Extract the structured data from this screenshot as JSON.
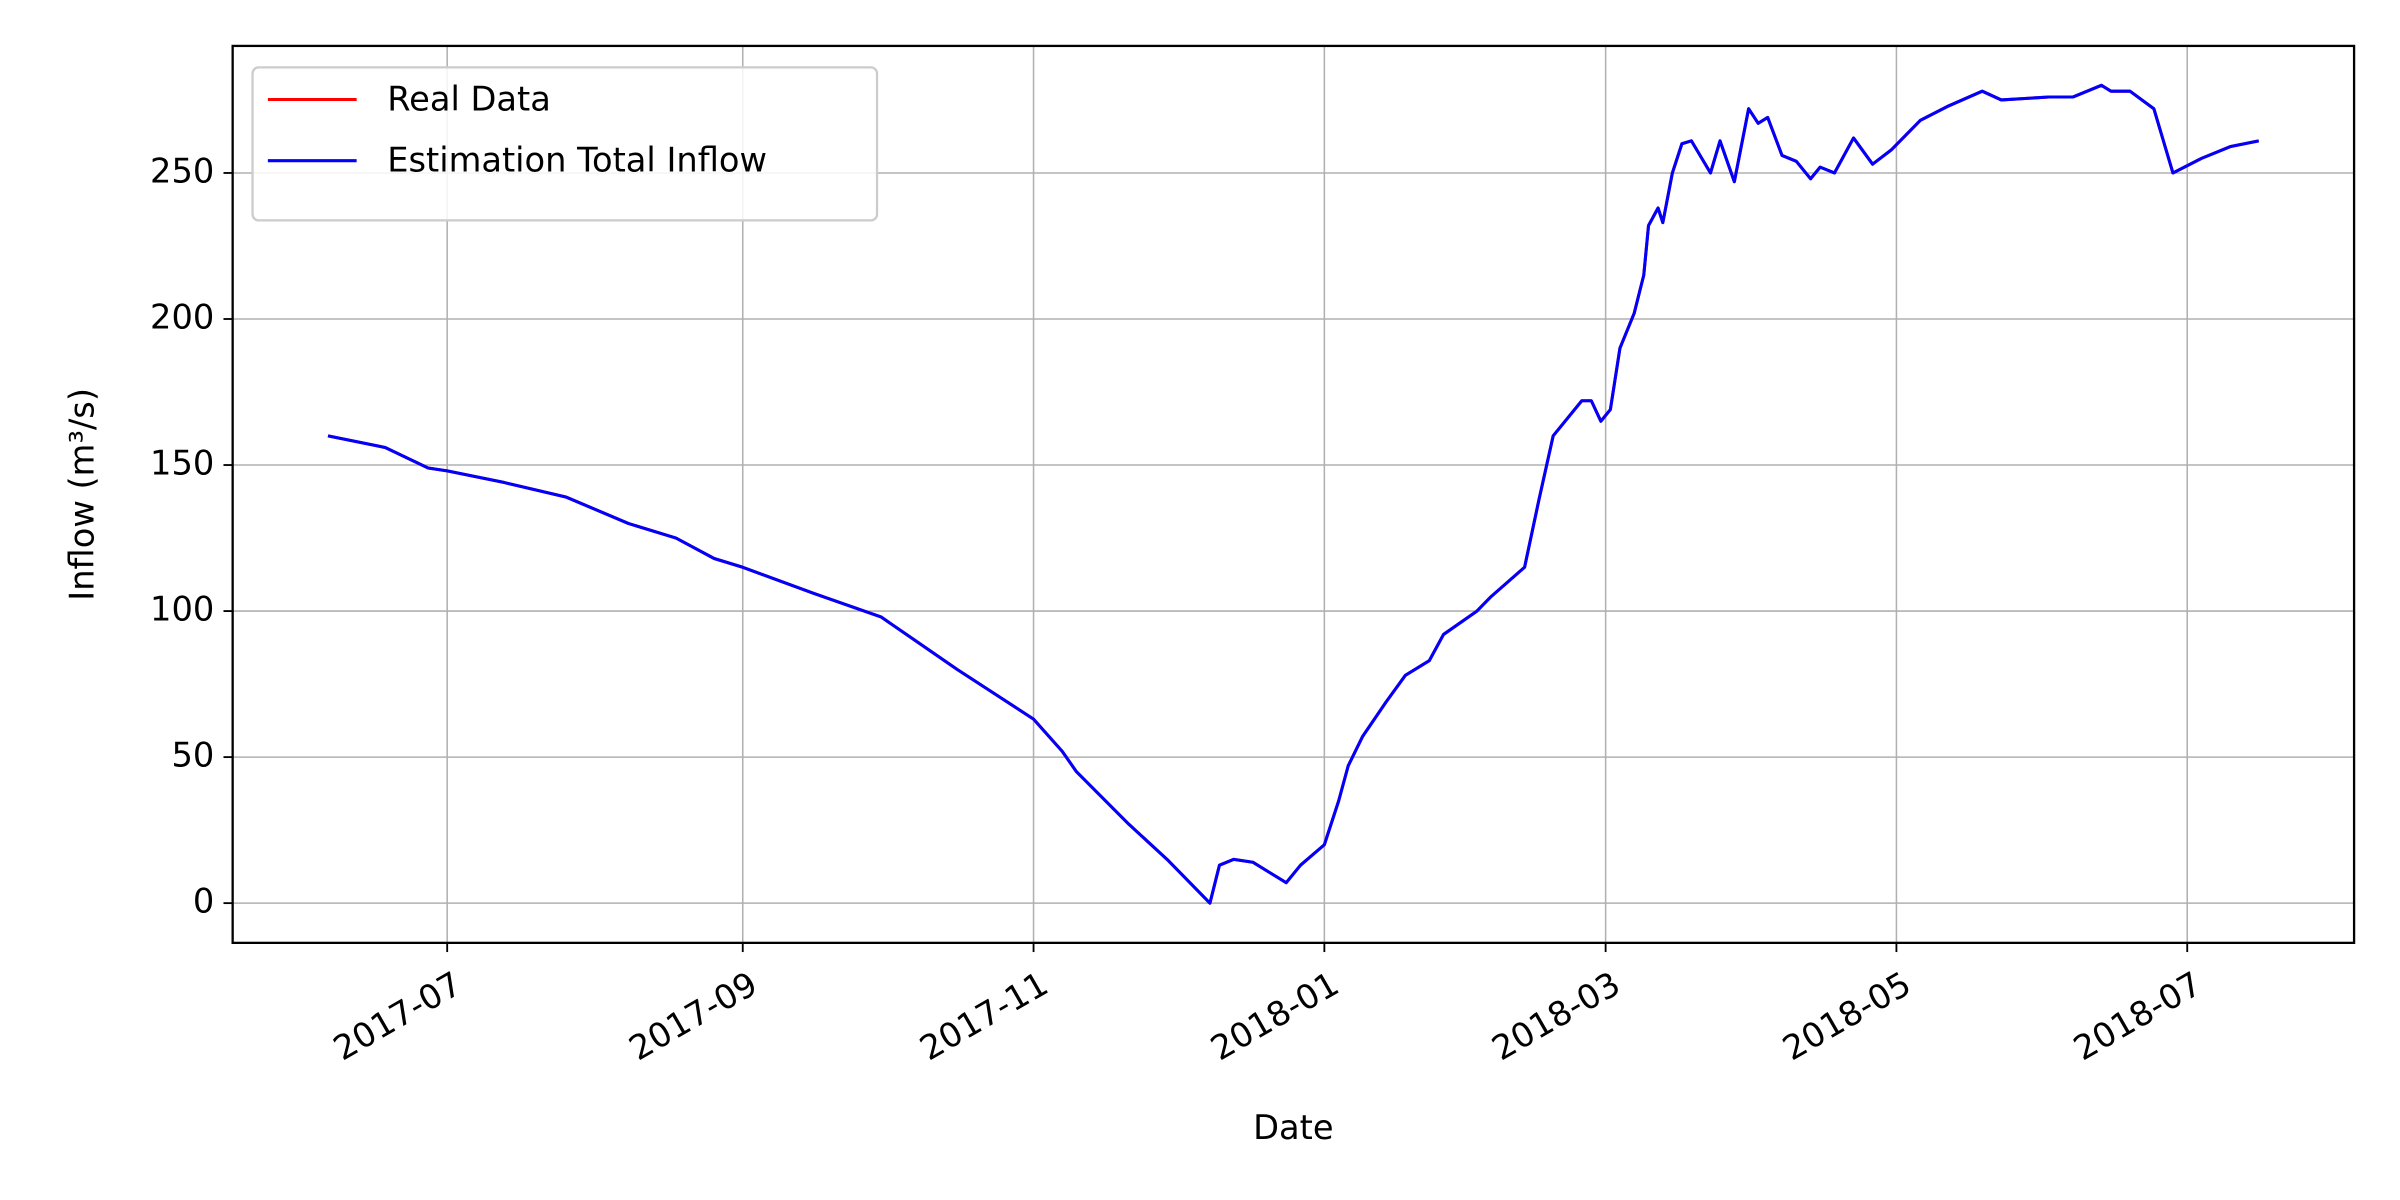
{
  "chart_data": {
    "type": "line",
    "x_label": "Date",
    "y_label": "Inflow (m³/s)",
    "x": [
      "2017-06-06",
      "2017-06-18",
      "2017-06-27",
      "2017-07-01",
      "2017-07-13",
      "2017-07-26",
      "2017-08-08",
      "2017-08-18",
      "2017-08-26",
      "2017-09-01",
      "2017-09-16",
      "2017-09-30",
      "2017-10-16",
      "2017-11-01",
      "2017-11-07",
      "2017-11-10",
      "2017-11-21",
      "2017-11-29",
      "2017-12-08",
      "2017-12-10",
      "2017-12-13",
      "2017-12-17",
      "2017-12-24",
      "2017-12-27",
      "2018-01-01",
      "2018-01-04",
      "2018-01-06",
      "2018-01-09",
      "2018-01-14",
      "2018-01-18",
      "2018-01-23",
      "2018-01-26",
      "2018-02-02",
      "2018-02-05",
      "2018-02-12",
      "2018-02-15",
      "2018-02-18",
      "2018-02-24",
      "2018-02-26",
      "2018-02-28",
      "2018-03-02",
      "2018-03-04",
      "2018-03-07",
      "2018-03-09",
      "2018-03-10",
      "2018-03-12",
      "2018-03-13",
      "2018-03-15",
      "2018-03-17",
      "2018-03-19",
      "2018-03-23",
      "2018-03-25",
      "2018-03-28",
      "2018-03-31",
      "2018-04-02",
      "2018-04-04",
      "2018-04-07",
      "2018-04-10",
      "2018-04-13",
      "2018-04-15",
      "2018-04-18",
      "2018-04-22",
      "2018-04-26",
      "2018-04-30",
      "2018-05-06",
      "2018-05-12",
      "2018-05-19",
      "2018-05-23",
      "2018-06-02",
      "2018-06-07",
      "2018-06-13",
      "2018-06-15",
      "2018-06-19",
      "2018-06-24",
      "2018-06-28",
      "2018-07-04",
      "2018-07-10",
      "2018-07-16"
    ],
    "series": [
      {
        "name": "Real Data",
        "color": "#ff0000",
        "values": [
          160,
          156,
          149,
          148,
          144,
          139,
          130,
          125,
          118,
          115,
          106,
          98,
          80,
          63,
          52,
          45,
          27,
          15,
          0,
          13,
          15,
          14,
          7,
          13,
          20,
          35,
          47,
          57,
          69,
          78,
          83,
          92,
          100,
          105,
          115,
          138,
          160,
          172,
          172,
          165,
          169,
          190,
          202,
          215,
          232,
          238,
          233,
          250,
          260,
          261,
          250,
          261,
          247,
          272,
          267,
          269,
          256,
          254,
          248,
          252,
          250,
          262,
          253,
          258,
          268,
          273,
          278,
          275,
          276,
          276,
          280,
          278,
          278,
          272,
          250,
          255,
          259,
          261
        ]
      },
      {
        "name": "Estimation Total Inflow",
        "color": "#0000ff",
        "values": [
          160,
          156,
          149,
          148,
          144,
          139,
          130,
          125,
          118,
          115,
          106,
          98,
          80,
          63,
          52,
          45,
          27,
          15,
          0,
          13,
          15,
          14,
          7,
          13,
          20,
          35,
          47,
          57,
          69,
          78,
          83,
          92,
          100,
          105,
          115,
          138,
          160,
          172,
          172,
          165,
          169,
          190,
          202,
          215,
          232,
          238,
          233,
          250,
          260,
          261,
          250,
          261,
          247,
          272,
          267,
          269,
          256,
          254,
          248,
          252,
          250,
          262,
          253,
          258,
          268,
          273,
          278,
          275,
          276,
          276,
          280,
          278,
          278,
          272,
          250,
          255,
          259,
          261
        ]
      }
    ],
    "xlim": [
      "2017-05-17",
      "2018-08-05"
    ],
    "xticks": [
      "2017-07",
      "2017-09",
      "2017-11",
      "2018-01",
      "2018-03",
      "2018-05",
      "2018-07"
    ],
    "ylim": [
      -13.6,
      293.5
    ],
    "yticks": [
      0,
      50,
      100,
      150,
      200,
      250
    ],
    "grid": true,
    "legend": "upper left"
  }
}
